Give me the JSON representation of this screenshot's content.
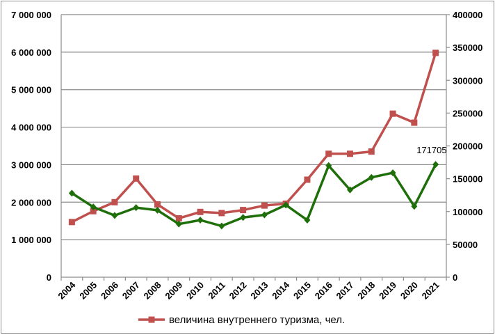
{
  "chart_data": {
    "type": "line",
    "categories": [
      "2004",
      "2005",
      "2006",
      "2007",
      "2008",
      "2009",
      "2010",
      "2011",
      "2012",
      "2013",
      "2014",
      "2015",
      "2016",
      "2017",
      "2018",
      "2019",
      "2020",
      "2021"
    ],
    "series": [
      {
        "name": "величина внутреннего туризма, чел.",
        "axis": "left",
        "color": "#c0504d",
        "marker": "square",
        "values": [
          1470000,
          1760000,
          2000000,
          2630000,
          1940000,
          1570000,
          1740000,
          1710000,
          1790000,
          1910000,
          1960000,
          2600000,
          3290000,
          3290000,
          3350000,
          4360000,
          4120000,
          5980000
        ]
      },
      {
        "axis": "right",
        "color": "#1e6e0a",
        "marker": "diamond",
        "values": [
          128000,
          107000,
          94000,
          106000,
          102000,
          81000,
          87000,
          78000,
          91000,
          95000,
          110000,
          87000,
          170000,
          133000,
          152000,
          159000,
          108000,
          171705
        ]
      }
    ],
    "left_axis": {
      "ylim": [
        0,
        7000000
      ],
      "ticks": [
        "0",
        "1 000 000",
        "2 000 000",
        "3 000 000",
        "4 000 000",
        "5 000 000",
        "6 000 000",
        "7 000 000"
      ]
    },
    "right_axis": {
      "ylim": [
        0,
        400000
      ],
      "ticks": [
        "0",
        "50000",
        "100000",
        "150000",
        "200000",
        "250000",
        "300000",
        "350000",
        "400000"
      ]
    },
    "data_labels": [
      {
        "series": 1,
        "index": 17,
        "text": "171705"
      }
    ],
    "grid": true,
    "legend": {
      "placement": "bottom",
      "entries": [
        "величина внутреннего туризма, чел."
      ]
    }
  }
}
